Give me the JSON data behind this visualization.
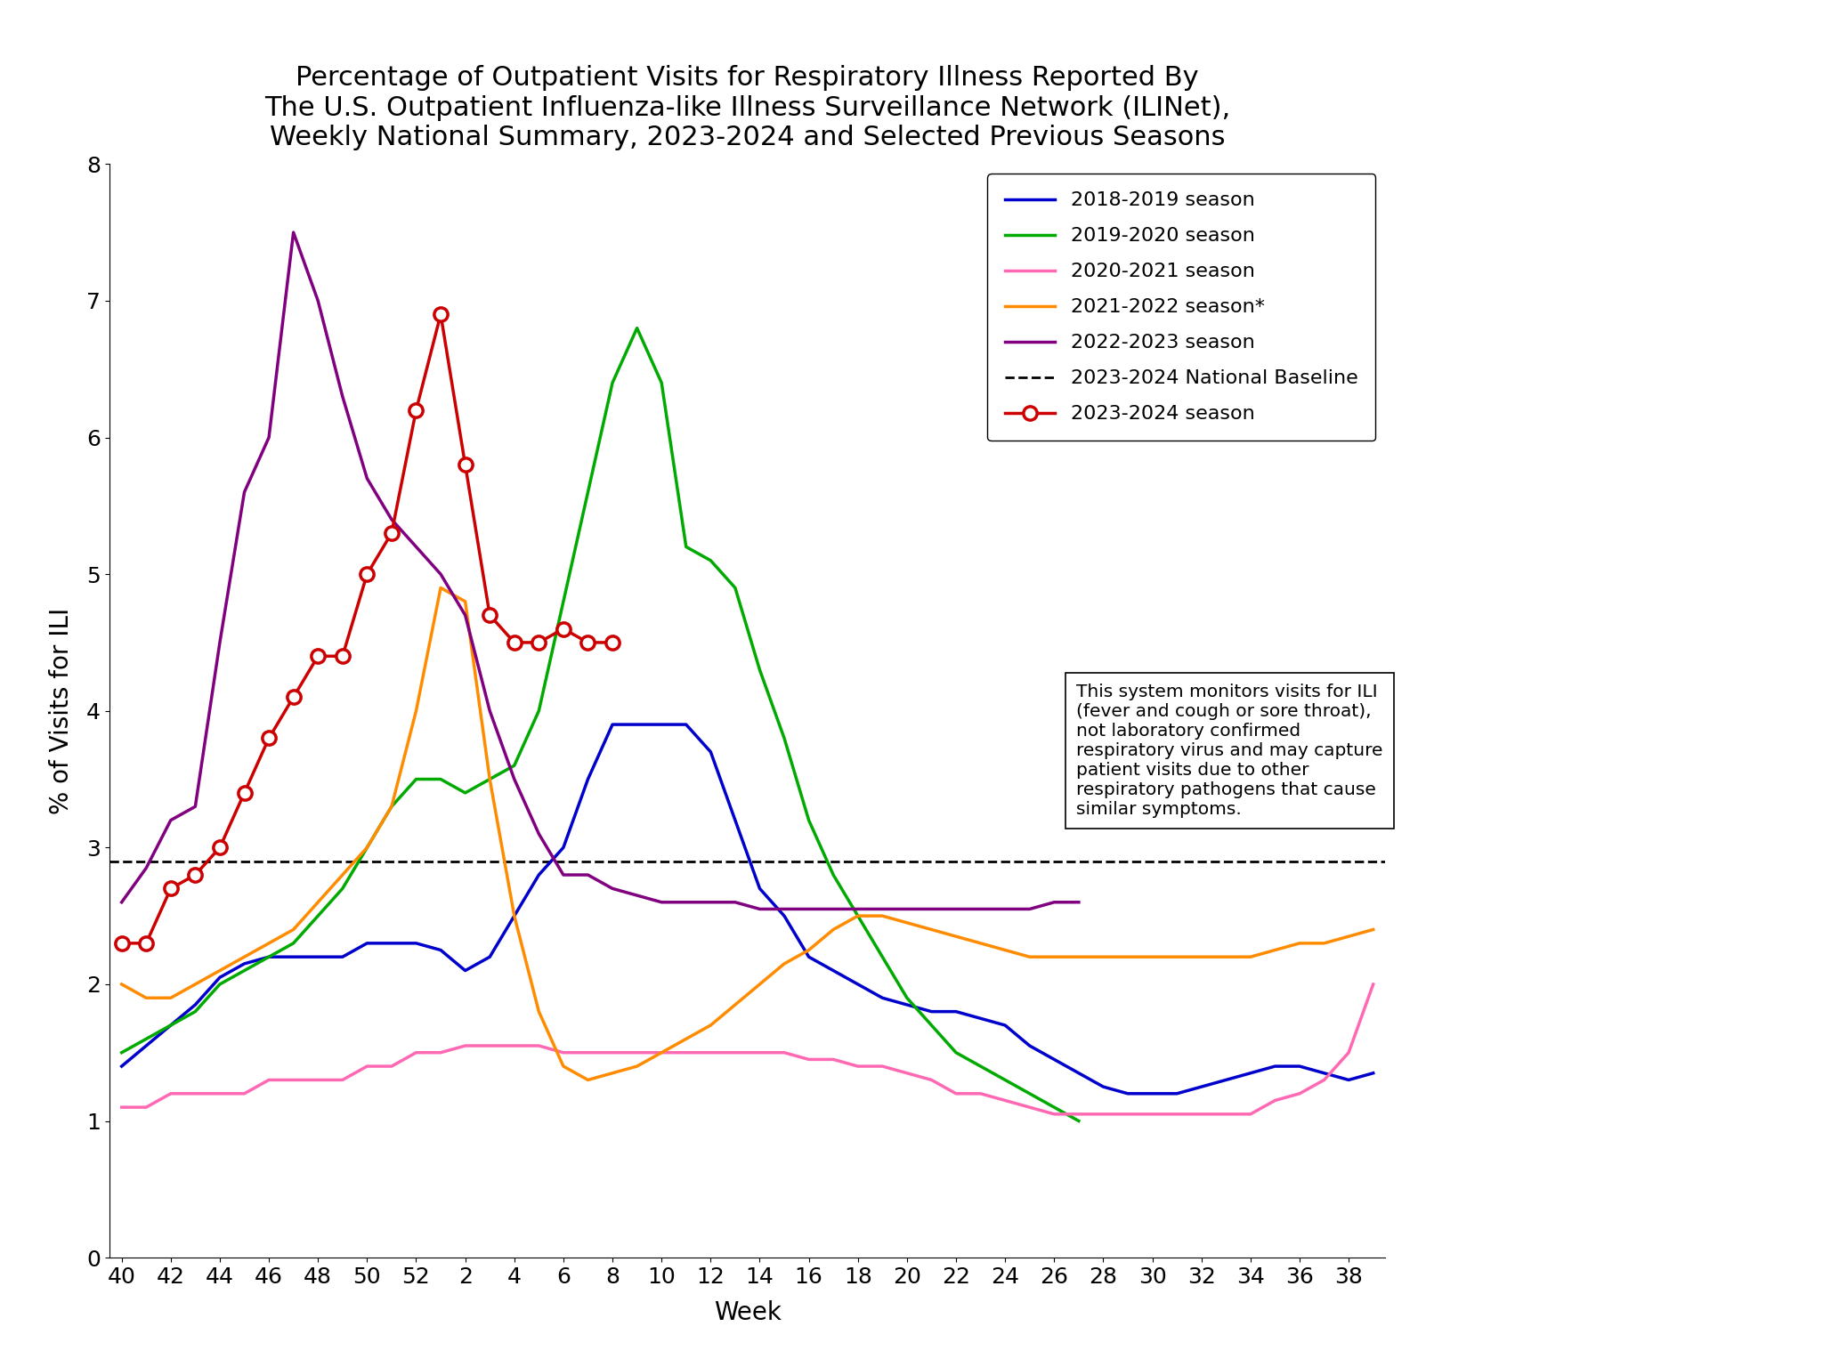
{
  "title": "Percentage of Outpatient Visits for Respiratory Illness Reported By\nThe U.S. Outpatient Influenza-like Illness Surveillance Network (ILINet),\nWeekly National Summary, 2023-2024 and Selected Previous Seasons",
  "xlabel": "Week",
  "ylabel": "% of Visits for ILI",
  "ylim": [
    0,
    8
  ],
  "baseline": 2.9,
  "background_color": "#ffffff",
  "weeks": [
    40,
    41,
    42,
    43,
    44,
    45,
    46,
    47,
    48,
    49,
    50,
    51,
    52,
    1,
    2,
    3,
    4,
    5,
    6,
    7,
    8,
    9,
    10,
    11,
    12,
    13,
    14,
    15,
    16,
    17,
    18,
    19,
    20,
    21,
    22,
    23,
    24,
    25,
    26,
    27,
    28,
    29,
    30,
    31,
    32,
    33,
    34,
    35,
    36,
    37,
    38,
    39
  ],
  "xtick_labels": [
    "40",
    "",
    "42",
    "",
    "44",
    "",
    "46",
    "",
    "48",
    "",
    "50",
    "",
    "52",
    "",
    "2",
    "",
    "4",
    "",
    "6",
    "",
    "8",
    "",
    "10",
    "",
    "12",
    "",
    "14",
    "",
    "16",
    "",
    "18",
    "",
    "20",
    "",
    "22",
    "",
    "24",
    "",
    "26",
    "",
    "28",
    "",
    "30",
    "",
    "32",
    "",
    "34",
    "",
    "36",
    "",
    "38",
    ""
  ],
  "season_2018_2019": [
    1.4,
    1.55,
    1.7,
    1.85,
    2.05,
    2.15,
    2.2,
    2.2,
    2.2,
    2.2,
    2.3,
    2.3,
    2.3,
    2.25,
    2.1,
    2.2,
    2.5,
    2.8,
    3.0,
    3.5,
    3.9,
    3.9,
    3.9,
    3.9,
    3.7,
    3.2,
    2.7,
    2.5,
    2.2,
    2.1,
    2.0,
    1.9,
    1.85,
    1.8,
    1.8,
    1.75,
    1.7,
    1.55,
    1.45,
    1.35,
    1.25,
    1.2,
    1.2,
    1.2,
    1.25,
    1.3,
    1.35,
    1.4,
    1.4,
    1.35,
    1.3,
    1.35
  ],
  "season_2019_2020": [
    1.5,
    1.6,
    1.7,
    1.8,
    2.0,
    2.1,
    2.2,
    2.3,
    2.5,
    2.7,
    3.0,
    3.3,
    3.5,
    3.5,
    3.4,
    3.5,
    3.6,
    4.0,
    4.8,
    5.6,
    6.4,
    6.8,
    6.4,
    5.2,
    5.1,
    4.9,
    4.3,
    3.8,
    3.2,
    2.8,
    2.5,
    2.2,
    1.9,
    1.7,
    1.5,
    1.4,
    1.3,
    1.2,
    1.1,
    1.0,
    null,
    null,
    null,
    null,
    null,
    null,
    null,
    null,
    null,
    null,
    null,
    null
  ],
  "season_2020_2021": [
    1.1,
    1.1,
    1.2,
    1.2,
    1.2,
    1.2,
    1.3,
    1.3,
    1.3,
    1.3,
    1.4,
    1.4,
    1.5,
    1.5,
    1.55,
    1.55,
    1.55,
    1.55,
    1.5,
    1.5,
    1.5,
    1.5,
    1.5,
    1.5,
    1.5,
    1.5,
    1.5,
    1.5,
    1.45,
    1.45,
    1.4,
    1.4,
    1.35,
    1.3,
    1.2,
    1.2,
    1.15,
    1.1,
    1.05,
    1.05,
    1.05,
    1.05,
    1.05,
    1.05,
    1.05,
    1.05,
    1.05,
    1.15,
    1.2,
    1.3,
    1.5,
    2.0
  ],
  "season_2021_2022": [
    2.0,
    1.9,
    1.9,
    2.0,
    2.1,
    2.2,
    2.3,
    2.4,
    2.6,
    2.8,
    3.0,
    3.3,
    4.0,
    4.9,
    4.8,
    3.5,
    2.5,
    1.8,
    1.4,
    1.3,
    1.35,
    1.4,
    1.5,
    1.6,
    1.7,
    1.85,
    2.0,
    2.15,
    2.25,
    2.4,
    2.5,
    2.5,
    2.45,
    2.4,
    2.35,
    2.3,
    2.25,
    2.2,
    2.2,
    2.2,
    2.2,
    2.2,
    2.2,
    2.2,
    2.2,
    2.2,
    2.2,
    2.25,
    2.3,
    2.3,
    2.35,
    2.4
  ],
  "season_2022_2023": [
    2.6,
    2.85,
    3.2,
    3.3,
    4.5,
    5.6,
    6.0,
    7.5,
    7.0,
    6.3,
    5.7,
    5.4,
    5.2,
    5.0,
    4.7,
    4.0,
    3.5,
    3.1,
    2.8,
    2.8,
    2.7,
    2.65,
    2.6,
    2.6,
    2.6,
    2.6,
    2.55,
    2.55,
    2.55,
    2.55,
    2.55,
    2.55,
    2.55,
    2.55,
    2.55,
    2.55,
    2.55,
    2.55,
    2.6,
    2.6,
    null,
    null,
    null,
    null,
    null,
    null,
    null,
    null,
    null,
    null,
    null,
    null
  ],
  "season_2023_2024": [
    2.3,
    2.3,
    2.7,
    2.8,
    3.0,
    3.4,
    3.8,
    4.1,
    4.4,
    4.4,
    5.0,
    5.3,
    6.2,
    6.9,
    5.8,
    4.7,
    4.5,
    4.5,
    4.6,
    4.5,
    4.5,
    null,
    null,
    null,
    null,
    null,
    null,
    null,
    null,
    null,
    null,
    null,
    null,
    null,
    null,
    null,
    null,
    null,
    null,
    null,
    null,
    null,
    null,
    null,
    null,
    null,
    null,
    null,
    null,
    null,
    null,
    null
  ],
  "colors": {
    "2018_2019": "#0000cc",
    "2019_2020": "#00aa00",
    "2020_2021": "#ff69b4",
    "2021_2022": "#ff8c00",
    "2022_2023": "#800080",
    "baseline": "#000000",
    "2023_2024": "#cc0000"
  },
  "annotation_text": "This system monitors visits for ILI\n(fever and cough or sore throat),\nnot laboratory confirmed\nrespiratory virus and may capture\npatient visits due to other\nrespiratory pathogens that cause\nsimilar symptoms.",
  "legend_labels": [
    "2018-2019 season",
    "2019-2020 season",
    "2020-2021 season",
    "2021-2022 season*",
    "2022-2023 season",
    "2023-2024 National Baseline",
    "2023-2024 season"
  ]
}
